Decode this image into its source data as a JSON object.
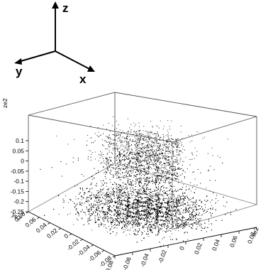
{
  "orientation_triad": {
    "z_label": "z",
    "y_label": "y",
    "x_label": "x"
  },
  "chart_data": {
    "type": "scatter",
    "projection": "3d",
    "title": "",
    "xlabel": "xe2",
    "ylabel": "ye2",
    "zlabel": "ze2",
    "xlim": [
      -0.08,
      0.08
    ],
    "ylim": [
      -0.08,
      0.08
    ],
    "zlim": [
      -0.25,
      0.1
    ],
    "x_ticks": [
      "-0.08",
      "-0.06",
      "-0.04",
      "-0.02",
      "0",
      "0.02",
      "0.04",
      "0.06",
      "0.08"
    ],
    "y_ticks": [
      "-0.08",
      "-0.06",
      "-0.04",
      "-0.02",
      "0",
      "0.02",
      "0.04",
      "0.06",
      "0.08"
    ],
    "z_ticks": [
      "-0.25",
      "-0.2",
      "-0.15",
      "-0.1",
      "-0.05",
      "0",
      "0.05",
      "0.1"
    ],
    "grid": false,
    "legend": "none",
    "marker_color": "#000000",
    "layers": [
      {
        "z": -0.25,
        "pattern": "dense gaussian cloud with hexagonal hole array",
        "spread": 0.028,
        "points": 9000
      },
      {
        "z": -0.05,
        "pattern": "hexagonal ring array",
        "spread": 0.035,
        "points": 1800
      },
      {
        "z": 0.06,
        "pattern": "hexagonal ring array",
        "spread": 0.028,
        "points": 900
      }
    ]
  }
}
